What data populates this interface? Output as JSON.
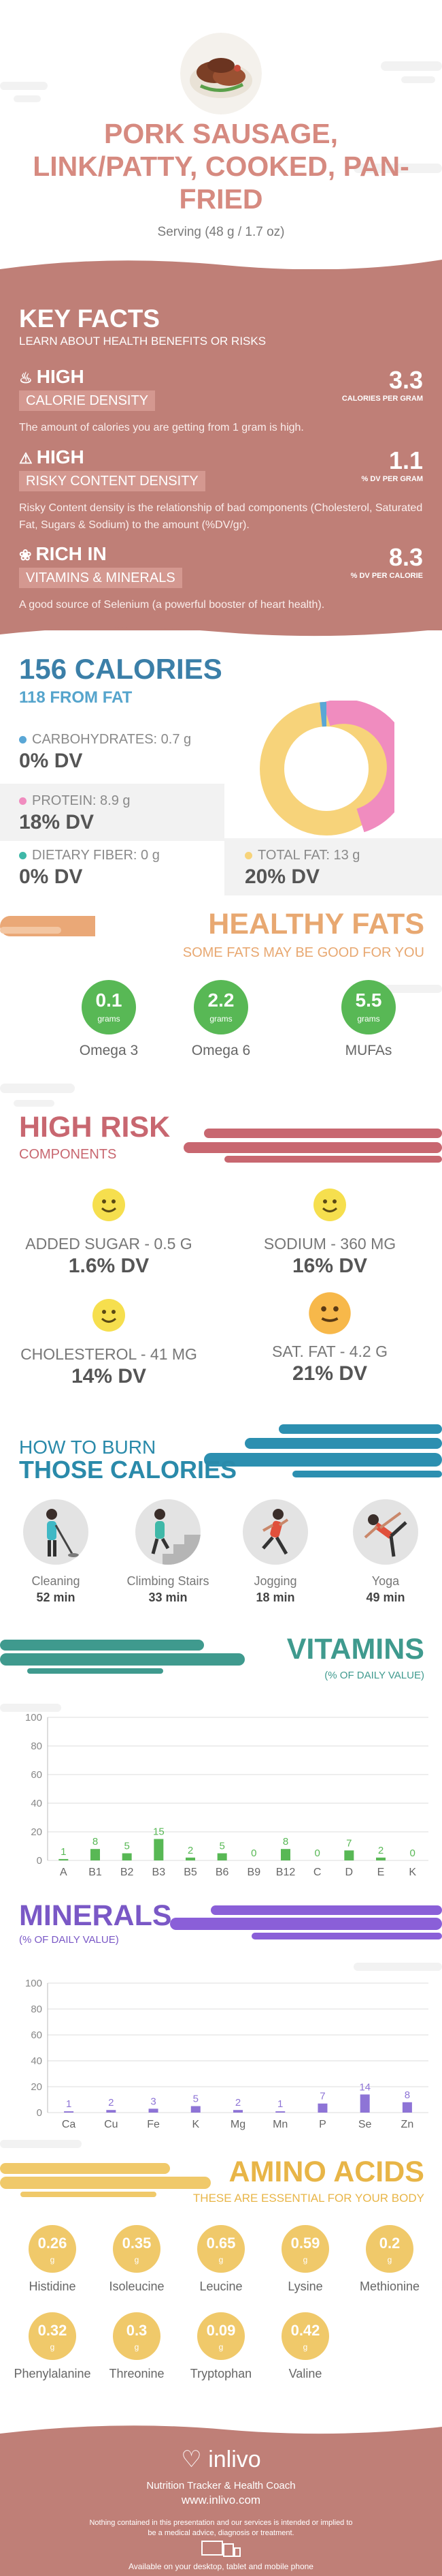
{
  "header": {
    "title": "PORK SAUSAGE, LINK/PATTY, COOKED, PAN-FRIED",
    "serving": "Serving (48 g / 1.7 oz)",
    "image_icon": "sausage-photo"
  },
  "key_facts": {
    "title": "KEY FACTS",
    "subtitle": "LEARN ABOUT HEALTH BENEFITS OR RISKS",
    "items": [
      {
        "level": "HIGH",
        "name": "CALORIE DENSITY",
        "value": "3.3",
        "unit": "CALORIES PER GRAM",
        "desc": "The amount of calories you are getting from 1 gram is high.",
        "icon": "flame-icon"
      },
      {
        "level": "HIGH",
        "name": "RISKY CONTENT DENSITY",
        "value": "1.1",
        "unit": "% DV PER GRAM",
        "desc": "Risky Content density is the relationship of bad components (Cholesterol, Saturated Fat, Sugars & Sodium) to the amount (%DV/gr).",
        "icon": "warning-icon"
      },
      {
        "level": "RICH IN",
        "name": "VITAMINS & MINERALS",
        "value": "8.3",
        "unit": "% DV PER CALORIE",
        "desc": "A good source of Selenium (a powerful booster of heart health).",
        "icon": "leaf-icon"
      }
    ]
  },
  "calories": {
    "title": "156 CALORIES",
    "from_fat": "118 FROM FAT",
    "macros": [
      {
        "label": "CARBOHYDRATES: 0.7 g",
        "dv": "0% DV",
        "color": "#5aa7d6"
      },
      {
        "label": "PROTEIN: 8.9 g",
        "dv": "18% DV",
        "color": "#f08cbf"
      },
      {
        "label": "DIETARY FIBER: 0 g",
        "dv": "0% DV",
        "color": "#3fb8a8"
      },
      {
        "label": "TOTAL FAT: 13 g",
        "dv": "20% DV",
        "color": "#f7d37a"
      }
    ]
  },
  "healthy_fats": {
    "title": "HEALTHY FATS",
    "subtitle": "SOME FATS MAY BE GOOD FOR YOU",
    "items": [
      {
        "value": "0.1",
        "unit": "grams",
        "name": "Omega 3"
      },
      {
        "value": "2.2",
        "unit": "grams",
        "name": "Omega 6"
      },
      {
        "value": "5.5",
        "unit": "grams",
        "name": "MUFAs"
      }
    ]
  },
  "high_risk": {
    "title": "HIGH RISK",
    "subtitle": "COMPONENTS",
    "items": [
      {
        "name": "ADDED SUGAR - 0.5 g",
        "dv": "1.6% DV",
        "face": "smile-face-icon"
      },
      {
        "name": "SODIUM - 360 mg",
        "dv": "16% DV",
        "face": "smile-face-icon"
      },
      {
        "name": "CHOLESTEROL - 41 mg",
        "dv": "14% DV",
        "face": "smile-face-icon"
      },
      {
        "name": "SAT. FAT - 4.2 g",
        "dv": "21% DV",
        "face": "neutral-face-icon"
      }
    ]
  },
  "burn": {
    "title_1": "HOW TO BURN",
    "title_2": "THOSE CALORIES",
    "activities": [
      {
        "name": "Cleaning",
        "minutes": "52 min",
        "icon": "cleaning-person-icon"
      },
      {
        "name": "Climbing Stairs",
        "minutes": "33 min",
        "icon": "stairs-person-icon"
      },
      {
        "name": "Jogging",
        "minutes": "18 min",
        "icon": "jogging-person-icon"
      },
      {
        "name": "Yoga",
        "minutes": "49 min",
        "icon": "yoga-person-icon"
      }
    ]
  },
  "vitamins": {
    "title": "VITAMINS",
    "subtitle": "(% OF DAILY VALUE)"
  },
  "minerals": {
    "title": "MINERALS",
    "subtitle": "(% OF DAILY VALUE)"
  },
  "chart_data": [
    {
      "type": "bar",
      "categories": [
        "A",
        "B1",
        "B2",
        "B3",
        "B5",
        "B6",
        "B9",
        "B12",
        "C",
        "D",
        "E",
        "K"
      ],
      "values": [
        1,
        8,
        5,
        15,
        2,
        5,
        0,
        8,
        0,
        7,
        2,
        0
      ],
      "ylim": [
        0,
        100
      ],
      "yticks": [
        "0",
        "20",
        "40",
        "60",
        "80",
        "100"
      ],
      "color": "#58b855",
      "grid": true
    },
    {
      "type": "bar",
      "categories": [
        "Ca",
        "Cu",
        "Fe",
        "K",
        "Mg",
        "Mn",
        "P",
        "Se",
        "Zn"
      ],
      "values": [
        1,
        2,
        3,
        5,
        2,
        1,
        7,
        14,
        8
      ],
      "ylim": [
        0,
        100
      ],
      "yticks": [
        "0",
        "20",
        "40",
        "60",
        "80",
        "100"
      ],
      "color": "#8e74d6",
      "grid": true
    }
  ],
  "amino_acids": {
    "title": "AMINO ACIDS",
    "subtitle": "THESE ARE ESSENTIAL FOR YOUR BODY",
    "unit": "g",
    "items": [
      {
        "value": "0.26",
        "name": "Histidine"
      },
      {
        "value": "0.35",
        "name": "Isoleucine"
      },
      {
        "value": "0.65",
        "name": "Leucine"
      },
      {
        "value": "0.59",
        "name": "Lysine"
      },
      {
        "value": "0.2",
        "name": "Methionine"
      },
      {
        "value": "0.32",
        "name": "Phenylalanine"
      },
      {
        "value": "0.3",
        "name": "Threonine"
      },
      {
        "value": "0.09",
        "name": "Tryptophan"
      },
      {
        "value": "0.42",
        "name": "Valine"
      }
    ]
  },
  "footer": {
    "logo": "inlivo",
    "tagline": "Nutrition Tracker & Health Coach",
    "url": "www.inlivo.com",
    "disclaimer": "Nothing contained in this presentation and our services is intended or implied to be a medical advice, diagnosis or treatment.",
    "available": "Available on your desktop, tablet and mobile phone"
  }
}
